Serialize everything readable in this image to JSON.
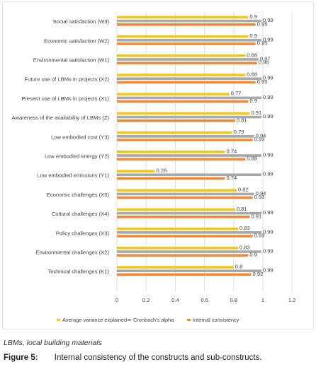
{
  "chart_data": {
    "type": "bar",
    "orientation": "horizontal",
    "categories": [
      "Social satisfaction  (W3)",
      "Economic satisfaction (W2)",
      "Environmental satisfaction (W1)",
      "Future use of LBMs in projects (X2)",
      "Present use of LBMs in projects (X1)",
      "Awareness of the availability of LBMs (Z)",
      "Low embodied cost (Y3)",
      "Low embodied energy (Y2)",
      "Low embodied emissions (Y1)",
      "Economic challenges (X5)",
      "Cultural challenges (X4)",
      "Policy challenges (X3)",
      "Environmental challenges (X2)",
      "Technical challenges (K1)"
    ],
    "series": [
      {
        "name": "Average variance explained",
        "color": "#f5c518",
        "values": [
          0.9,
          0.9,
          0.88,
          0.88,
          0.77,
          0.91,
          0.79,
          0.74,
          0.26,
          0.82,
          0.81,
          0.83,
          0.83,
          0.8
        ]
      },
      {
        "name": "Cronbach’s alpha",
        "color": "#a8a8a8",
        "values": [
          0.99,
          0.99,
          0.97,
          0.99,
          0.99,
          0.99,
          0.94,
          0.99,
          0.99,
          0.94,
          0.99,
          0.99,
          0.99,
          0.99
        ]
      },
      {
        "name": "Internal consistency",
        "color": "#ee8a3c",
        "values": [
          0.95,
          0.95,
          0.96,
          0.95,
          0.9,
          0.81,
          0.93,
          0.88,
          0.74,
          0.93,
          0.91,
          0.93,
          0.9,
          0.92
        ]
      }
    ],
    "x_ticks": [
      "0",
      "0.2",
      "0.4",
      "0.6",
      "0.8",
      "1",
      "1.2"
    ],
    "xlim": [
      0,
      1.2
    ],
    "grid": true,
    "legend_position": "bottom"
  },
  "footnote": "LBMs, local building materials",
  "caption": {
    "label": "Figure 5:",
    "text": "Internal consistency of the constructs and sub-constructs."
  }
}
